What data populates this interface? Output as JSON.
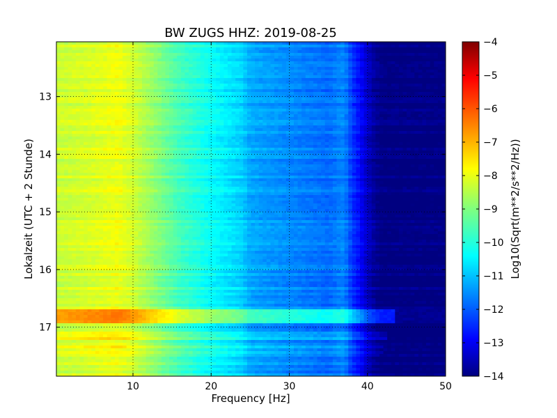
{
  "chart_data": {
    "type": "heatmap",
    "title": "BW ZUGS HHZ: 2019-08-25",
    "xlabel": "Frequency [Hz]",
    "ylabel": "Lokalzeit (UTC + 2 Stunde)",
    "colorbar_label": "Log10(Sqrt(m**2/s**2/Hz))",
    "xlim": [
      0.2,
      50
    ],
    "ylim": [
      17.85,
      12.05
    ],
    "y_inverted": true,
    "clim": [
      -14,
      -4
    ],
    "colormap": "jet",
    "grid": true,
    "x_ticks": [
      10,
      20,
      30,
      40,
      50
    ],
    "x_tick_labels": [
      "10",
      "20",
      "30",
      "40",
      "50"
    ],
    "y_ticks": [
      13,
      14,
      15,
      16,
      17
    ],
    "y_tick_labels": [
      "13",
      "14",
      "15",
      "16",
      "17"
    ],
    "colorbar_ticks": [
      -4,
      -5,
      -6,
      -7,
      -8,
      -9,
      -10,
      -11,
      -12,
      -13,
      -14
    ],
    "colorbar_tick_labels": [
      "−4",
      "−5",
      "−6",
      "−7",
      "−8",
      "−9",
      "−10",
      "−11",
      "−12",
      "−13",
      "−14"
    ],
    "frequency_profile": {
      "frequency_hz": [
        0,
        5,
        8,
        10,
        13,
        16,
        20,
        24,
        25,
        30,
        35,
        37,
        38,
        39,
        40,
        41,
        42,
        50
      ],
      "log_amplitude": [
        -8.3,
        -8.1,
        -7.9,
        -8.2,
        -8.9,
        -9.6,
        -10.2,
        -10.7,
        -11.1,
        -11.4,
        -11.7,
        -11.4,
        -12.2,
        -12.7,
        -13.3,
        -13.8,
        -14,
        -14
      ]
    },
    "events": [
      {
        "time_start": 16.7,
        "time_end": 16.95,
        "log_amplitude_offset": 1.3,
        "max_frequency_hz": 43.5
      },
      {
        "time_start": 17.08,
        "time_end": 17.2,
        "log_amplitude_offset": 0.6,
        "max_frequency_hz": 42.5
      },
      {
        "time_start": 17.3,
        "time_end": 17.35,
        "log_amplitude_offset": 0.5,
        "max_frequency_hz": 42
      },
      {
        "time_start": 17.42,
        "time_end": 17.47,
        "log_amplitude_offset": 0.5,
        "max_frequency_hz": 42
      }
    ]
  }
}
